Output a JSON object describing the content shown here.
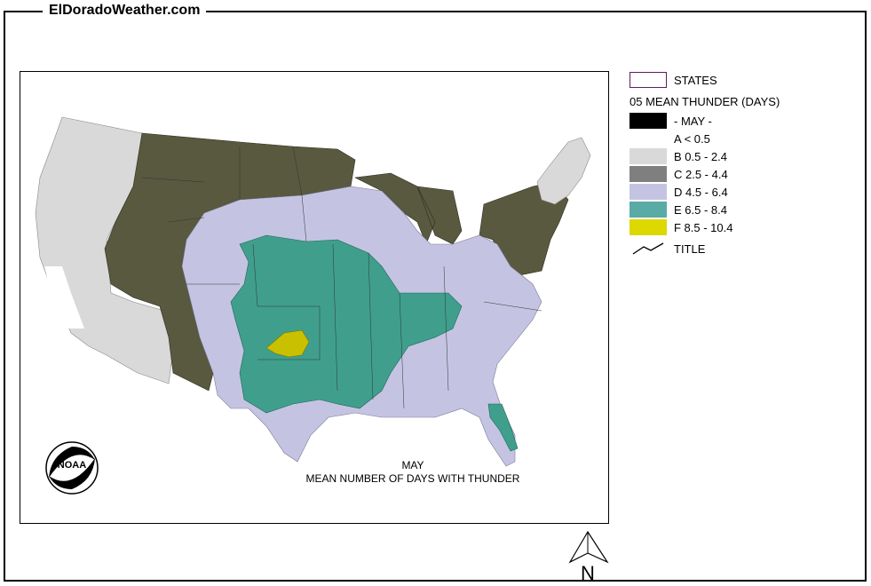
{
  "site_title": "ElDoradoWeather.com",
  "legend": {
    "states_label": "STATES",
    "heading": "05 MEAN THUNDER (DAYS)",
    "month_label": "- MAY -",
    "classes": [
      {
        "label": "A < 0.5",
        "color": "#ffffff"
      },
      {
        "label": "B 0.5 - 2.4",
        "color": "#d9d9d9"
      },
      {
        "label": "C 2.5 - 4.4",
        "color": "#595940"
      },
      {
        "label": "D 4.5 - 6.4",
        "color": "#c4c4e2"
      },
      {
        "label": "E 6.5 - 8.4",
        "color": "#3f9f8c"
      },
      {
        "label": "F 8.5 - 10.4",
        "color": "#c8c000"
      }
    ],
    "title_label": "TITLE"
  },
  "map_caption": {
    "line1": "MAY",
    "line2": "MEAN NUMBER OF DAYS WITH THUNDER"
  },
  "noaa_logo_text": "NOAA",
  "north_label": "N"
}
